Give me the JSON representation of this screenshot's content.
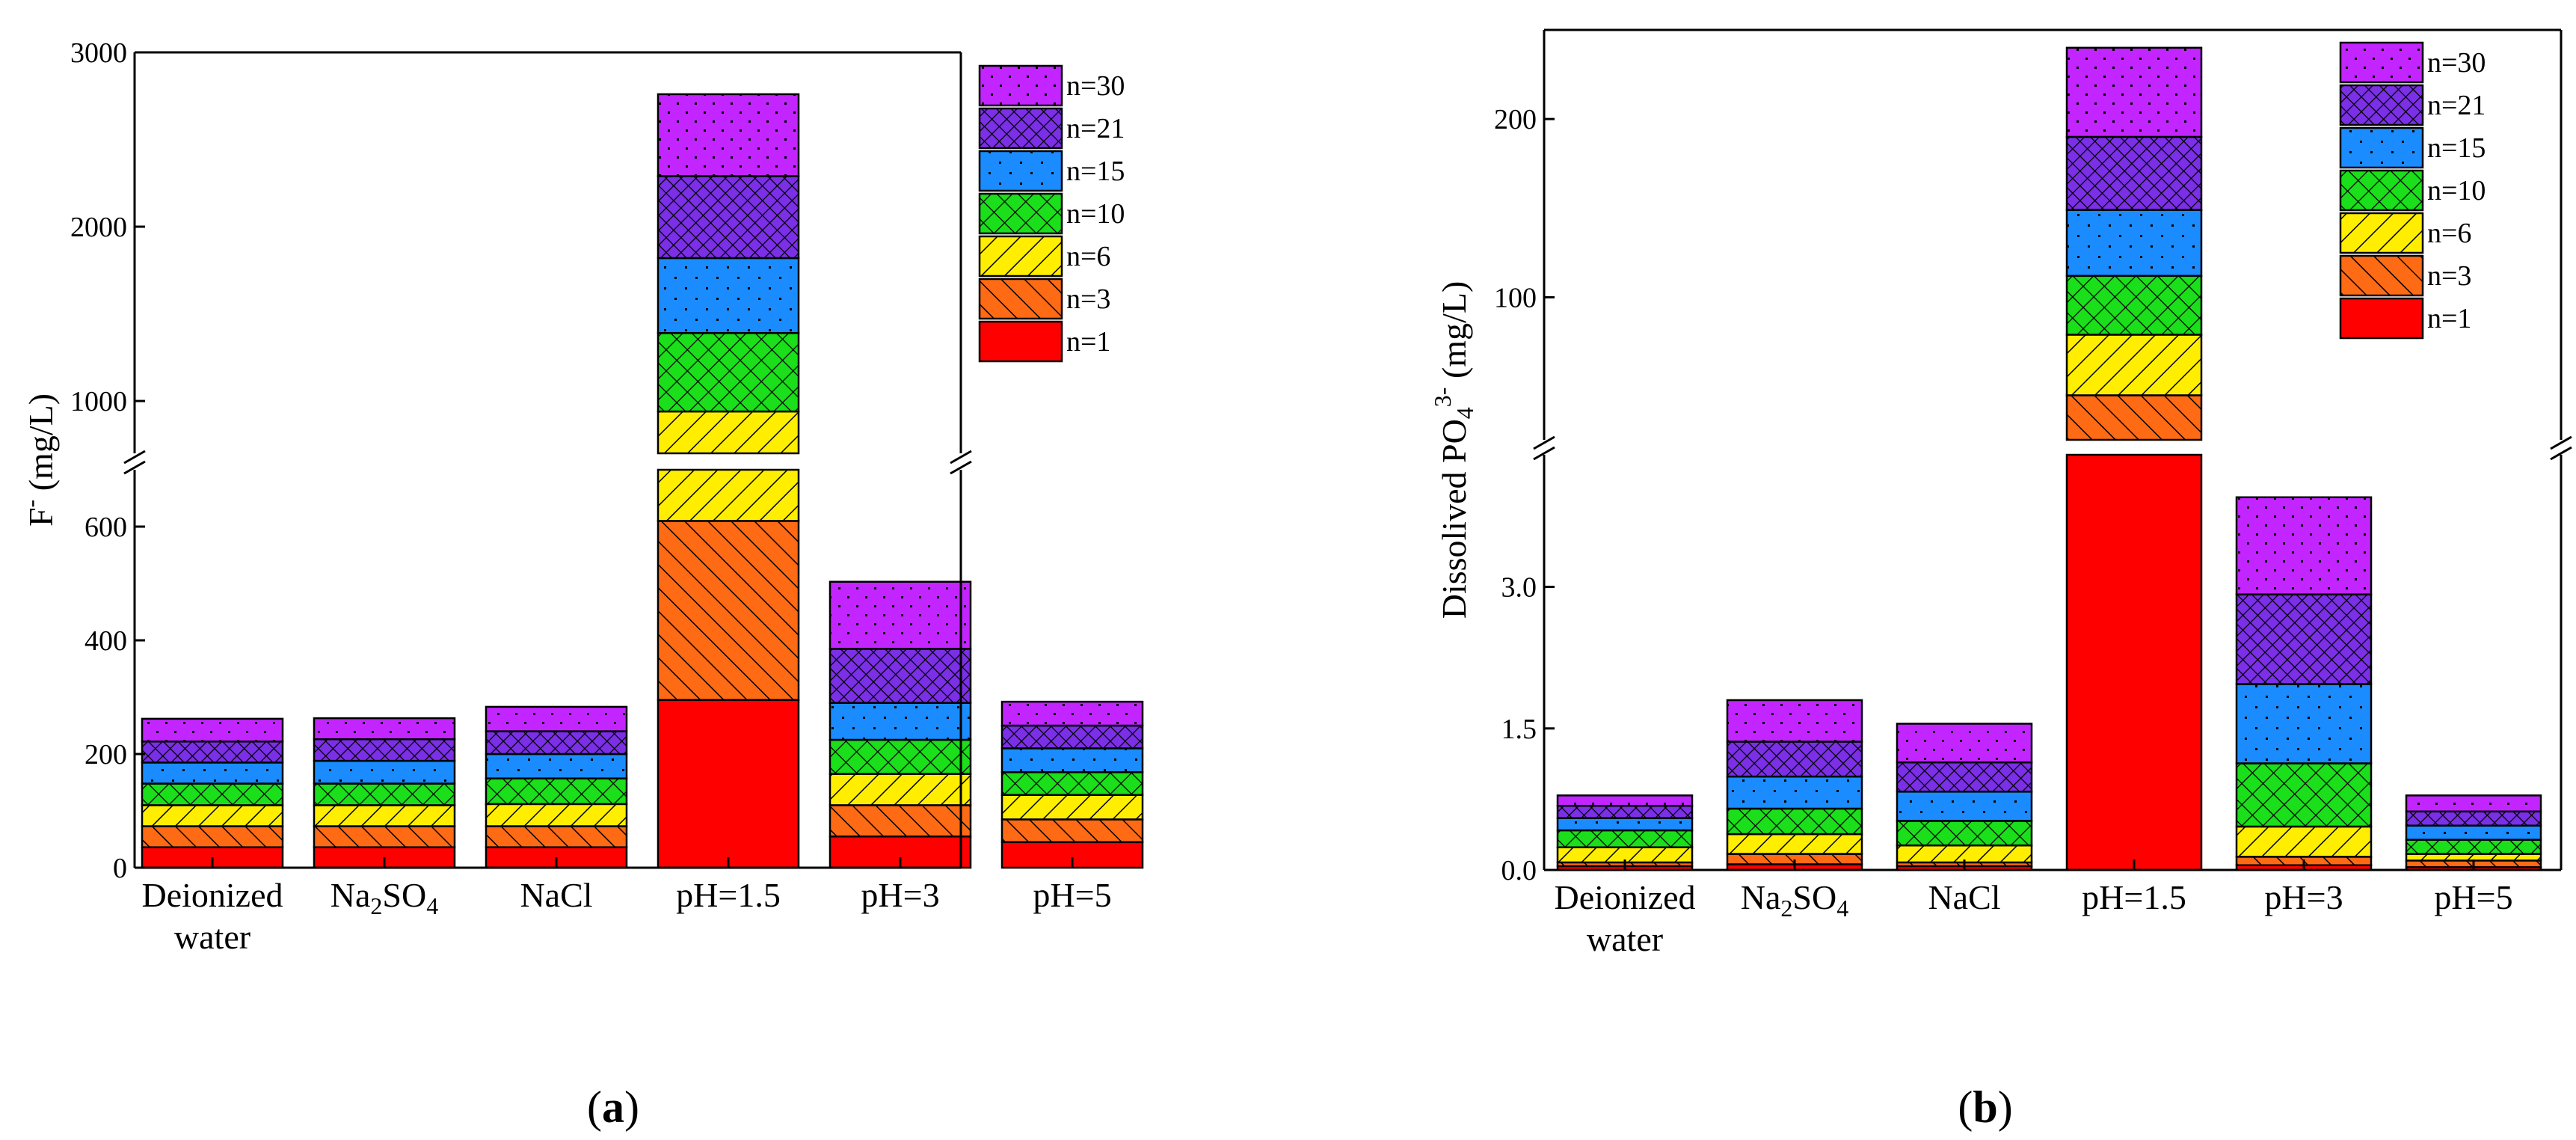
{
  "figure": {
    "panel_a_label": "(a)",
    "panel_b_label": "(b)",
    "tag_a": "a",
    "tag_b": "b"
  },
  "colors": {
    "n=1": "#ff0000",
    "n=3": "#ff6a14",
    "n=6": "#ffee00",
    "n=10": "#1adf1a",
    "n=15": "#1a8cff",
    "n=21": "#7b2fe6",
    "n=30": "#c225ff",
    "outline": "#000000"
  },
  "chart_data": [
    {
      "type": "bar",
      "stacked": true,
      "panel": "(a)",
      "ylabel": "F- (mg/L)",
      "ylabel_main": "F",
      "ylabel_sup": "-",
      "ylabel_unit": " (mg/L)",
      "y_break": true,
      "lower_segment": {
        "ylim": [
          0,
          700
        ],
        "ticks": [
          0,
          200,
          400,
          600
        ]
      },
      "upper_segment": {
        "ylim": [
          700,
          3000
        ],
        "ticks": [
          1000,
          2000,
          3000
        ]
      },
      "categories": [
        {
          "text": "Deionized",
          "line2": "water",
          "sub": null,
          "after": null
        },
        {
          "text": "Na",
          "sub": "2",
          "text2": "SO",
          "sub2": "4",
          "after": null
        },
        {
          "text": "NaCl"
        },
        {
          "text": "pH=1.5"
        },
        {
          "text": "pH=3"
        },
        {
          "text": "pH=5"
        }
      ],
      "category_names": [
        "Deionized water",
        "Na2SO4",
        "NaCl",
        "pH=1.5",
        "pH=3",
        "pH=5"
      ],
      "cumulative_top": {
        "n=1": [
          36,
          36,
          36,
          295,
          55,
          45
        ],
        "n=3": [
          73,
          73,
          73,
          610,
          110,
          85
        ],
        "n=6": [
          110,
          110,
          112,
          940,
          165,
          128
        ],
        "n=10": [
          148,
          148,
          157,
          1390,
          225,
          168
        ],
        "n=15": [
          185,
          188,
          200,
          1820,
          290,
          210
        ],
        "n=21": [
          222,
          226,
          240,
          2290,
          385,
          250
        ],
        "n=30": [
          262,
          263,
          283,
          2760,
          503,
          292
        ]
      },
      "legend": [
        "n=30",
        "n=21",
        "n=15",
        "n=10",
        "n=6",
        "n=3",
        "n=1"
      ],
      "legend_position": "top-right"
    },
    {
      "type": "bar",
      "stacked": true,
      "panel": "(b)",
      "ylabel": "Dissolived PO4 3- (mg/L)",
      "ylabel_main": "Dissolived PO",
      "ylabel_sub": "4",
      "ylabel_sup": "3-",
      "ylabel_unit": "  (mg/L)",
      "y_break": true,
      "lower_segment": {
        "ylim": [
          0,
          4.4
        ],
        "ticks": [
          0.0,
          1.5,
          3.0
        ],
        "tick_labels": [
          "0.0",
          "1.5",
          "3.0"
        ]
      },
      "upper_segment": {
        "ylim": [
          20,
          250
        ],
        "ticks": [
          100,
          200
        ],
        "tick_labels": [
          "100",
          "200"
        ]
      },
      "categories": [
        {
          "text": "Deionized",
          "line2": "water"
        },
        {
          "text": "Na",
          "sub": "2",
          "text2": "SO",
          "sub2": "4"
        },
        {
          "text": "NaCl"
        },
        {
          "text": "pH=1.5"
        },
        {
          "text": "pH=3"
        },
        {
          "text": "pH=5"
        }
      ],
      "category_names": [
        "Deionized water",
        "Na2SO4",
        "NaCl",
        "pH=1.5",
        "pH=3",
        "pH=5"
      ],
      "cumulative_top": {
        "n=1": [
          0.04,
          0.06,
          0.04,
          18,
          0.05,
          0.03
        ],
        "n=3": [
          0.08,
          0.17,
          0.08,
          45,
          0.14,
          0.1
        ],
        "n=6": [
          0.24,
          0.38,
          0.26,
          79,
          0.46,
          0.17
        ],
        "n=10": [
          0.42,
          0.65,
          0.52,
          112,
          1.13,
          0.32
        ],
        "n=15": [
          0.55,
          0.99,
          0.83,
          149,
          1.97,
          0.47
        ],
        "n=21": [
          0.68,
          1.36,
          1.14,
          190,
          2.92,
          0.62
        ],
        "n=30": [
          0.79,
          1.8,
          1.55,
          240,
          3.95,
          0.79
        ]
      },
      "legend": [
        "n=30",
        "n=21",
        "n=15",
        "n=10",
        "n=6",
        "n=3",
        "n=1"
      ],
      "legend_position": "top-right"
    }
  ]
}
